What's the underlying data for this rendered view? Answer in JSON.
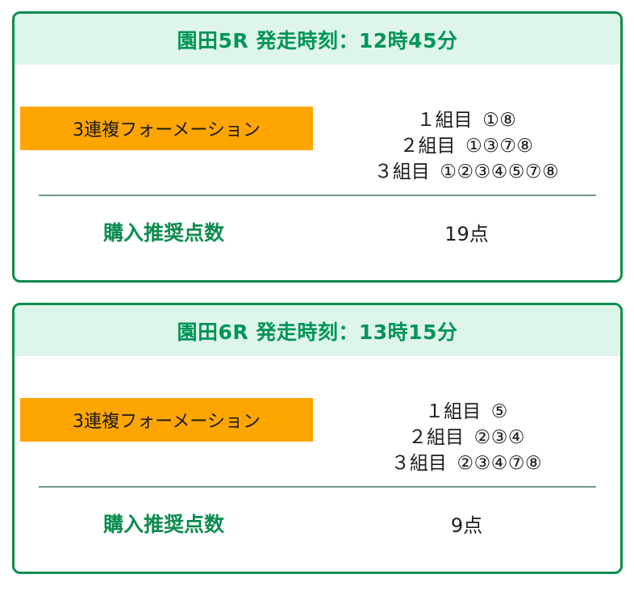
{
  "colors": {
    "card_border": "#0c8c4e",
    "header_bg": "#def6ea",
    "header_text": "#009457",
    "label_bg": "#ffa500",
    "label_text": "#1a1a1a",
    "divider": "#6e9884",
    "points_label_text": "#0c8c4e",
    "body_text": "#1c1c1c",
    "page_bg": "#ffffff"
  },
  "cards": [
    {
      "title": "園田5R 発走時刻：12時45分",
      "bet_type_label": "3連複フォーメーション",
      "groups": [
        {
          "label": "１組目",
          "numbers": "①⑧"
        },
        {
          "label": "２組目",
          "numbers": "①③⑦⑧"
        },
        {
          "label": "３組目",
          "numbers": "①②③④⑤⑦⑧"
        }
      ],
      "points_label": "購入推奨点数",
      "points_value": "19点"
    },
    {
      "title": "園田6R 発走時刻：13時15分",
      "bet_type_label": "3連複フォーメーション",
      "groups": [
        {
          "label": "１組目",
          "numbers": "⑤"
        },
        {
          "label": "２組目",
          "numbers": "②③④"
        },
        {
          "label": "３組目",
          "numbers": "②③④⑦⑧"
        }
      ],
      "points_label": "購入推奨点数",
      "points_value": "9点"
    }
  ]
}
